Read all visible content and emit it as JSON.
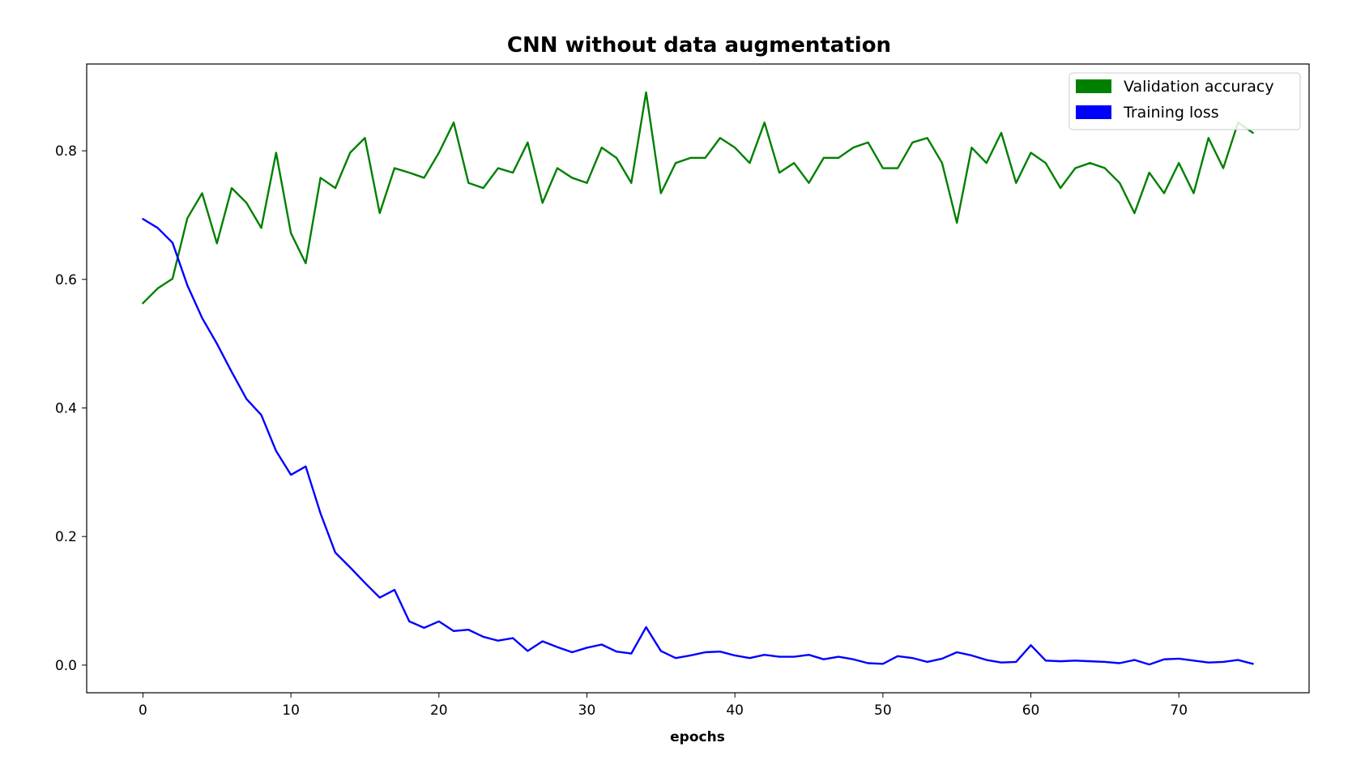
{
  "chart_data": {
    "type": "line",
    "title": "CNN without data augmentation",
    "xlabel": "epochs",
    "ylabel": "",
    "xlim": [
      -3.8,
      78.8
    ],
    "ylim": [
      -0.043,
      0.935
    ],
    "xticks": [
      0,
      10,
      20,
      30,
      40,
      50,
      60,
      70
    ],
    "yticks": [
      0.0,
      0.2,
      0.4,
      0.6,
      0.8
    ],
    "ytick_labels": [
      "0.0",
      "0.2",
      "0.4",
      "0.6",
      "0.8"
    ],
    "grid": false,
    "legend_position": "top-right",
    "series": [
      {
        "name": "Validation accuracy",
        "color": "#008000",
        "x": [
          0,
          1,
          2,
          3,
          4,
          5,
          6,
          7,
          8,
          9,
          10,
          11,
          12,
          13,
          14,
          15,
          16,
          17,
          18,
          19,
          20,
          21,
          22,
          23,
          24,
          25,
          26,
          27,
          28,
          29,
          30,
          31,
          32,
          33,
          34,
          35,
          36,
          37,
          38,
          39,
          40,
          41,
          42,
          43,
          44,
          45,
          46,
          47,
          48,
          49,
          50,
          51,
          52,
          53,
          54,
          55,
          56,
          57,
          58,
          59,
          60,
          61,
          62,
          63,
          64,
          65,
          66,
          67,
          68,
          69,
          70,
          71,
          72,
          73,
          74,
          75
        ],
        "values": [
          0.563,
          0.586,
          0.601,
          0.695,
          0.734,
          0.656,
          0.742,
          0.719,
          0.68,
          0.797,
          0.672,
          0.625,
          0.758,
          0.742,
          0.797,
          0.82,
          0.703,
          0.773,
          0.766,
          0.758,
          0.797,
          0.844,
          0.75,
          0.742,
          0.773,
          0.766,
          0.813,
          0.719,
          0.773,
          0.758,
          0.75,
          0.805,
          0.789,
          0.75,
          0.891,
          0.734,
          0.781,
          0.789,
          0.789,
          0.82,
          0.805,
          0.781,
          0.844,
          0.766,
          0.781,
          0.75,
          0.789,
          0.789,
          0.805,
          0.813,
          0.773,
          0.773,
          0.813,
          0.82,
          0.781,
          0.688,
          0.805,
          0.781,
          0.828,
          0.75,
          0.797,
          0.781,
          0.742,
          0.773,
          0.781,
          0.773,
          0.75,
          0.703,
          0.766,
          0.734,
          0.781,
          0.734,
          0.82,
          0.773,
          0.844,
          0.828
        ]
      },
      {
        "name": "Training loss",
        "color": "#0000ff",
        "x": [
          0,
          1,
          2,
          3,
          4,
          5,
          6,
          7,
          8,
          9,
          10,
          11,
          12,
          13,
          14,
          15,
          16,
          17,
          18,
          19,
          20,
          21,
          22,
          23,
          24,
          25,
          26,
          27,
          28,
          29,
          30,
          31,
          32,
          33,
          34,
          35,
          36,
          37,
          38,
          39,
          40,
          41,
          42,
          43,
          44,
          45,
          46,
          47,
          48,
          49,
          50,
          51,
          52,
          53,
          54,
          55,
          56,
          57,
          58,
          59,
          60,
          61,
          62,
          63,
          64,
          65,
          66,
          67,
          68,
          69,
          70,
          71,
          72,
          73,
          74,
          75
        ],
        "values": [
          0.694,
          0.68,
          0.657,
          0.591,
          0.54,
          0.5,
          0.456,
          0.414,
          0.389,
          0.333,
          0.296,
          0.309,
          0.236,
          0.175,
          0.152,
          0.128,
          0.105,
          0.117,
          0.068,
          0.058,
          0.068,
          0.053,
          0.055,
          0.044,
          0.038,
          0.042,
          0.022,
          0.037,
          0.028,
          0.02,
          0.027,
          0.032,
          0.021,
          0.018,
          0.059,
          0.022,
          0.011,
          0.015,
          0.02,
          0.021,
          0.015,
          0.011,
          0.016,
          0.013,
          0.013,
          0.016,
          0.009,
          0.013,
          0.009,
          0.003,
          0.002,
          0.014,
          0.011,
          0.005,
          0.01,
          0.02,
          0.015,
          0.008,
          0.004,
          0.005,
          0.031,
          0.007,
          0.006,
          0.007,
          0.006,
          0.005,
          0.003,
          0.008,
          0.001,
          0.009,
          0.01,
          0.007,
          0.004,
          0.005,
          0.008,
          0.002
        ]
      }
    ]
  }
}
